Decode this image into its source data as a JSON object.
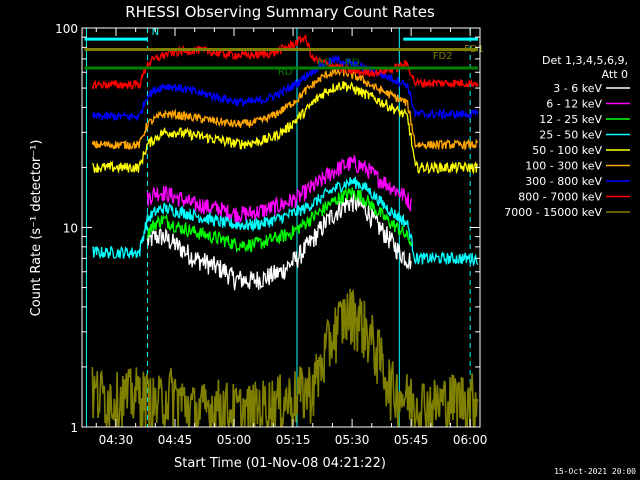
{
  "chart_data": {
    "type": "line",
    "title": "RHESSI Observing Summary Count Rates",
    "xlabel": "Start Time (01-Nov-08 04:21:22)",
    "ylabel": "Count Rate (s⁻¹ detector⁻¹)",
    "yscale": "log",
    "ylim": [
      1,
      100
    ],
    "xlim_minutes": [
      21.37,
      122.5
    ],
    "x_ticks": [
      {
        "label": "04:30",
        "value": 30
      },
      {
        "label": "04:45",
        "value": 45
      },
      {
        "label": "05:00",
        "value": 60
      },
      {
        "label": "05:15",
        "value": 75
      },
      {
        "label": "05:30",
        "value": 90
      },
      {
        "label": "05:45",
        "value": 105
      },
      {
        "label": "06:00",
        "value": 120
      }
    ],
    "y_ticks": [
      {
        "label": "1",
        "value": 1
      },
      {
        "label": "10",
        "value": 10
      },
      {
        "label": "100",
        "value": 100
      }
    ],
    "detector_info": [
      "Det 1,3,4,5,6,9,",
      "Att 0"
    ],
    "legend_position": "right",
    "series": [
      {
        "name": "3 - 6 keV",
        "color": "#ffffff",
        "x": [
          38,
          40,
          42,
          44,
          46,
          48,
          50,
          52,
          54,
          56,
          58,
          60,
          62,
          64,
          66,
          68,
          70,
          72,
          74,
          76,
          78,
          80,
          82,
          84,
          86,
          88,
          90,
          92,
          94,
          96,
          98,
          100,
          102,
          104,
          105
        ],
        "y": [
          8.5,
          9,
          9,
          8.5,
          8,
          7.5,
          7,
          6.8,
          6.5,
          6.3,
          6,
          5.5,
          5.5,
          5.4,
          5.5,
          5.6,
          5.8,
          6,
          6.5,
          7,
          7.8,
          8.7,
          9.8,
          11,
          12,
          13,
          13.5,
          13,
          12,
          10.5,
          9.5,
          8.5,
          7.5,
          7,
          6.8
        ]
      },
      {
        "name": "6 - 12 keV",
        "color": "#ff00ff",
        "x": [
          38,
          40,
          42,
          44,
          46,
          48,
          50,
          52,
          54,
          56,
          58,
          60,
          62,
          64,
          66,
          68,
          70,
          72,
          74,
          76,
          78,
          80,
          82,
          84,
          86,
          88,
          90,
          92,
          94,
          96,
          98,
          100,
          102,
          104,
          105
        ],
        "y": [
          14,
          15,
          15,
          14.5,
          14,
          13.5,
          13,
          13,
          12.5,
          12.5,
          12,
          11.8,
          11.7,
          11.8,
          12,
          12.3,
          12.6,
          13,
          13.5,
          14,
          15,
          16,
          17,
          18.5,
          19.5,
          20.5,
          21,
          20.5,
          19.5,
          18,
          17,
          16,
          15,
          14,
          13
        ]
      },
      {
        "name": "12 - 25 keV",
        "color": "#00ff00",
        "x": [
          38,
          40,
          42,
          44,
          46,
          48,
          50,
          52,
          54,
          56,
          58,
          60,
          62,
          64,
          66,
          68,
          70,
          72,
          74,
          76,
          78,
          80,
          82,
          84,
          86,
          88,
          90,
          92,
          94,
          96,
          98,
          100,
          102,
          104,
          105
        ],
        "y": [
          9.5,
          10.5,
          11,
          10.5,
          10,
          9.8,
          9.5,
          9.3,
          9,
          8.8,
          8.6,
          8.3,
          8.2,
          8.2,
          8.3,
          8.5,
          8.8,
          9,
          9.3,
          9.8,
          10.5,
          11.3,
          12,
          13,
          13.8,
          14.5,
          15,
          14.5,
          13.5,
          12.3,
          11.3,
          10.5,
          9.8,
          9,
          8.5
        ]
      },
      {
        "name": "25 - 50 keV",
        "color": "#00ffff",
        "x": [
          24,
          28,
          32,
          36,
          38,
          40,
          42,
          44,
          46,
          48,
          50,
          52,
          54,
          56,
          58,
          60,
          62,
          64,
          66,
          68,
          70,
          72,
          74,
          76,
          78,
          80,
          82,
          84,
          86,
          88,
          90,
          92,
          94,
          96,
          98,
          100,
          102,
          104,
          106,
          110,
          114,
          118,
          122
        ],
        "y": [
          7.5,
          7.5,
          7.5,
          7.5,
          11,
          12,
          12.5,
          12.3,
          12,
          11.8,
          11.5,
          11.2,
          11,
          10.7,
          10.5,
          10.4,
          10.3,
          10.3,
          10.4,
          10.6,
          10.9,
          11.2,
          11.6,
          12,
          12.5,
          13.2,
          14,
          15,
          15.8,
          16.5,
          17,
          16.5,
          15.5,
          14.2,
          13,
          12,
          11.2,
          10.5,
          7,
          7,
          7,
          7,
          7
        ]
      },
      {
        "name": "50 - 100 keV",
        "color": "#ffff00",
        "x": [
          24,
          28,
          32,
          36,
          38,
          40,
          42,
          44,
          46,
          48,
          50,
          52,
          54,
          56,
          58,
          60,
          62,
          64,
          66,
          68,
          70,
          72,
          74,
          76,
          78,
          80,
          82,
          84,
          86,
          88,
          90,
          92,
          94,
          96,
          98,
          100,
          102,
          104,
          106,
          110,
          114,
          118,
          122
        ],
        "y": [
          20,
          20,
          20,
          20,
          26,
          28,
          30,
          30,
          30,
          29.5,
          29,
          28.5,
          28,
          27.5,
          27,
          26.5,
          26.3,
          26.5,
          27,
          27.5,
          28.5,
          30,
          32,
          35,
          38,
          42,
          46,
          49,
          51,
          52,
          50,
          48,
          46,
          44,
          42,
          40,
          38,
          36,
          20,
          20,
          20,
          20,
          20
        ]
      },
      {
        "name": "100 - 300 keV",
        "color": "#ffa500",
        "x": [
          24,
          28,
          32,
          36,
          38,
          40,
          42,
          44,
          46,
          48,
          50,
          52,
          54,
          56,
          58,
          60,
          62,
          64,
          66,
          68,
          70,
          72,
          74,
          76,
          78,
          80,
          82,
          84,
          86,
          88,
          90,
          92,
          94,
          96,
          98,
          100,
          102,
          104,
          106,
          110,
          114,
          118,
          122
        ],
        "y": [
          26,
          26,
          26,
          26,
          33,
          35,
          37,
          37,
          36.5,
          36,
          35.5,
          35,
          34.5,
          34,
          33.5,
          33,
          33,
          33.3,
          34,
          35,
          36.5,
          38.5,
          41,
          44,
          48,
          52,
          56,
          59,
          60,
          60,
          58,
          56,
          53,
          50,
          48,
          46,
          44,
          42,
          26,
          26,
          26,
          26,
          26
        ]
      },
      {
        "name": "300 - 800 keV",
        "color": "#0000ff",
        "x": [
          24,
          28,
          32,
          36,
          38,
          40,
          42,
          44,
          46,
          48,
          50,
          52,
          54,
          56,
          58,
          60,
          62,
          64,
          66,
          68,
          70,
          72,
          74,
          76,
          78,
          80,
          82,
          84,
          86,
          88,
          90,
          92,
          94,
          96,
          98,
          100,
          102,
          104,
          106,
          110,
          114,
          118,
          122
        ],
        "y": [
          36,
          36,
          36,
          36,
          46,
          49,
          51,
          51,
          50,
          49,
          48,
          47,
          46,
          45,
          44,
          43,
          42.5,
          42.5,
          43,
          44,
          45.5,
          47.5,
          50,
          53,
          57,
          61,
          65,
          68,
          69,
          68,
          66,
          64,
          62,
          60,
          58,
          56,
          54,
          52,
          37,
          37,
          37,
          37,
          37
        ]
      },
      {
        "name": "800 - 7000 keV",
        "color": "#ff0000",
        "x": [
          24,
          28,
          32,
          36,
          38,
          40,
          42,
          44,
          46,
          48,
          50,
          52,
          54,
          56,
          58,
          60,
          62,
          64,
          66,
          68,
          70,
          72,
          74,
          76,
          78,
          80,
          82,
          84,
          86,
          88,
          90,
          92,
          94,
          96,
          98,
          100,
          102,
          104,
          106,
          110,
          114,
          118,
          122
        ],
        "y": [
          52,
          52,
          52,
          52,
          66,
          70,
          73,
          75,
          76,
          77,
          77.5,
          77,
          76,
          75,
          74,
          73.5,
          73,
          73,
          73.5,
          74,
          75.5,
          78,
          81,
          85,
          90,
          70,
          68,
          66,
          64,
          62,
          61,
          60,
          60,
          60,
          61,
          62,
          64,
          66,
          53,
          53,
          53,
          53,
          53
        ]
      },
      {
        "name": "7000 - 15000 keV",
        "color": "#808000",
        "x": [
          24,
          30,
          36,
          40,
          44,
          50,
          56,
          62,
          68,
          74,
          80,
          82,
          84,
          86,
          88,
          90,
          92,
          94,
          96,
          98,
          100,
          104,
          110,
          116,
          122
        ],
        "y": [
          1.5,
          1.4,
          1.5,
          1.3,
          1.5,
          1.2,
          1.3,
          1.2,
          1.3,
          1.4,
          1.6,
          2,
          2.6,
          3.2,
          3.6,
          3.8,
          3.5,
          3,
          2.5,
          2,
          1.6,
          1.4,
          1.3,
          1.4,
          1.4
        ]
      }
    ],
    "annotations": [
      {
        "label": "N",
        "color": "#00ffff"
      },
      {
        "label": "FD1",
        "color": "#808000"
      },
      {
        "label": "FD2",
        "color": "#808000"
      },
      {
        "label": "RD",
        "color": "#008000"
      },
      {
        "label": "RD",
        "color": "#008000"
      },
      {
        "label": "RD",
        "color": "#008000"
      }
    ],
    "state_bars": [
      {
        "color": "#00ffff",
        "level": 88,
        "segments": [
          [
            22,
            38
          ],
          [
            103,
            122
          ]
        ]
      },
      {
        "color": "#808000",
        "level": 78,
        "segments": [
          [
            22,
            122
          ]
        ]
      },
      {
        "color": "#008000",
        "level": 63,
        "segments": [
          [
            22,
            122
          ]
        ]
      }
    ],
    "vertical_markers": [
      {
        "color": "#00ffff",
        "style": "dashed",
        "x": 38
      },
      {
        "color": "#00ffff",
        "style": "dashed",
        "x": 120
      },
      {
        "color": "#00ffff",
        "style": "solid",
        "x": 102
      },
      {
        "color": "#00ffff",
        "style": "solid",
        "x": 76
      },
      {
        "color": "#00ffff",
        "style": "solid",
        "x": 22.5
      }
    ],
    "date_stamp": "15-Oct-2021 20:00"
  }
}
